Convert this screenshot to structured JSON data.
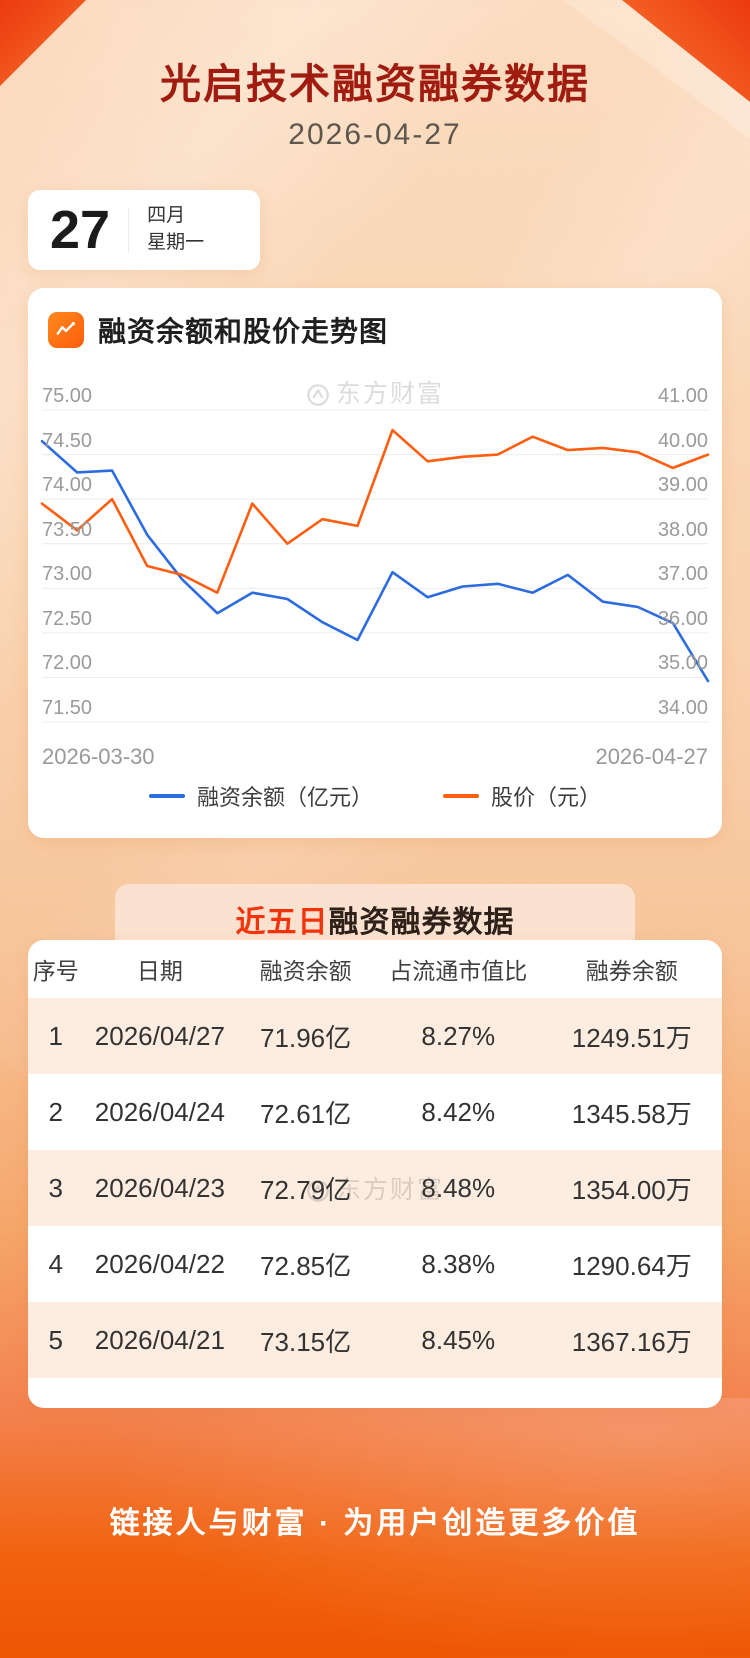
{
  "page": {
    "title": "光启技术融资融券数据",
    "date": "2026-04-27"
  },
  "calendar": {
    "day": "27",
    "month": "四月",
    "weekday": "星期一"
  },
  "chart_section": {
    "heading": "融资余额和股价走势图"
  },
  "watermark": {
    "text": "东方财富"
  },
  "chart_data": {
    "type": "line",
    "title": "融资余额和股价走势图",
    "grid": true,
    "legend_position": "bottom",
    "x_axis": {
      "start_label": "2026-03-30",
      "end_label": "2026-04-27"
    },
    "left_axis": {
      "label": "融资余额（亿元）",
      "min": 71.5,
      "max": 75.0,
      "ticks": [
        "75.00",
        "74.50",
        "74.00",
        "73.50",
        "73.00",
        "72.50",
        "72.00",
        "71.50"
      ]
    },
    "right_axis": {
      "label": "股价（元）",
      "min": 34.0,
      "max": 41.0,
      "ticks": [
        "41.00",
        "40.00",
        "39.00",
        "38.00",
        "37.00",
        "36.00",
        "35.00",
        "34.00"
      ]
    },
    "series": [
      {
        "name": "融资余额（亿元）",
        "axis": "left",
        "color": "#2c6be0",
        "values": [
          74.65,
          74.3,
          74.32,
          73.6,
          73.1,
          72.72,
          72.95,
          72.88,
          72.62,
          72.42,
          73.18,
          72.9,
          73.02,
          73.05,
          72.95,
          73.15,
          72.85,
          72.79,
          72.61,
          71.96
        ]
      },
      {
        "name": "股价（元）",
        "axis": "right",
        "color": "#fd5e10",
        "values": [
          38.9,
          38.3,
          39.0,
          37.5,
          37.3,
          36.9,
          38.9,
          38.0,
          38.55,
          38.4,
          40.55,
          39.85,
          39.95,
          40.0,
          40.4,
          40.1,
          40.15,
          40.05,
          39.7,
          40.0
        ]
      }
    ]
  },
  "table": {
    "title_highlight": "近五日",
    "title_rest": "融资融券数据",
    "headers": [
      "序号",
      "日期",
      "融资余额",
      "占流通市值比",
      "融券余额"
    ],
    "rows": [
      [
        "1",
        "2026/04/27",
        "71.96亿",
        "8.27%",
        "1249.51万"
      ],
      [
        "2",
        "2026/04/24",
        "72.61亿",
        "8.42%",
        "1345.58万"
      ],
      [
        "3",
        "2026/04/23",
        "72.79亿",
        "8.48%",
        "1354.00万"
      ],
      [
        "4",
        "2026/04/22",
        "72.85亿",
        "8.38%",
        "1290.64万"
      ],
      [
        "5",
        "2026/04/21",
        "73.15亿",
        "8.45%",
        "1367.16万"
      ]
    ]
  },
  "footer": {
    "slogan": "链接人与财富 · 为用户创造更多价值"
  },
  "colors": {
    "title_red": "#a11c10",
    "accent_blue": "#2c6be0",
    "accent_orange": "#fd5e10",
    "row_peach": "#fdece0",
    "band_peach": "#fbe2d0"
  }
}
